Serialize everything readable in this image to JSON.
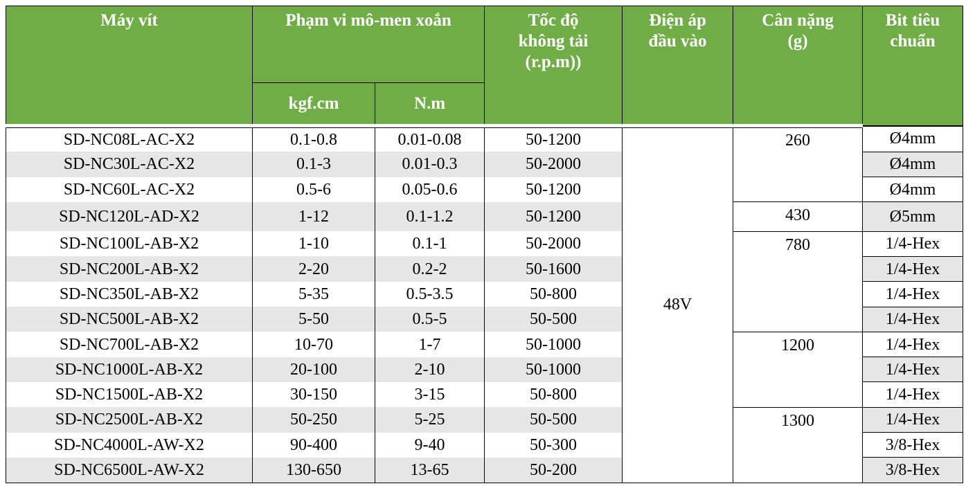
{
  "table": {
    "header": {
      "machine": "Máy vít",
      "torque_range": "Phạm vi mô-men xoắn",
      "kgf": "kgf.cm",
      "nm": "N.m",
      "speed": "Tốc độ\nkhông tải\n(r.p.m))",
      "voltage": "Điện áp\nđầu vào",
      "weight": "Cân nặng\n(g)",
      "bit": "Bit tiêu\nchuẩn"
    },
    "voltage": "48V",
    "rows": [
      [
        "SD-NC08L-AC-X2",
        "0.1-0.8",
        "0.01-0.08",
        "50-1200",
        "260",
        "Ø4mm"
      ],
      [
        "SD-NC30L-AC-X2",
        "0.1-3",
        "0.01-0.3",
        "50-2000",
        null,
        "Ø4mm"
      ],
      [
        "SD-NC60L-AC-X2",
        "0.5-6",
        "0.05-0.6",
        "50-1200",
        null,
        "Ø4mm"
      ],
      [
        "SD-NC120L-AD-X2",
        "1-12",
        "0.1-1.2",
        "50-1200",
        "430",
        "Ø5mm"
      ],
      [
        "SD-NC100L-AB-X2",
        "1-10",
        "0.1-1",
        "50-2000",
        "780",
        "1/4-Hex"
      ],
      [
        "SD-NC200L-AB-X2",
        "2-20",
        "0.2-2",
        "50-1600",
        null,
        "1/4-Hex"
      ],
      [
        "SD-NC350L-AB-X2",
        "5-35",
        "0.5-3.5",
        "50-800",
        null,
        "1/4-Hex"
      ],
      [
        "SD-NC500L-AB-X2",
        "5-50",
        "0.5-5",
        "50-500",
        null,
        "1/4-Hex"
      ],
      [
        "SD-NC700L-AB-X2",
        "10-70",
        "1-7",
        "50-1000",
        "1200",
        "1/4-Hex"
      ],
      [
        "SD-NC1000L-AB-X2",
        "20-100",
        "2-10",
        "50-1000",
        null,
        "1/4-Hex"
      ],
      [
        "SD-NC1500L-AB-X2",
        "30-150",
        "3-15",
        "50-800",
        null,
        "1/4-Hex"
      ],
      [
        "SD-NC2500L-AB-X2",
        "50-250",
        "5-25",
        "50-500",
        "1300",
        "1/4-Hex"
      ],
      [
        "SD-NC4000L-AW-X2",
        "90-400",
        "9-40",
        "50-300",
        null,
        "3/8-Hex"
      ],
      [
        "SD-NC6500L-AW-X2",
        "130-650",
        "13-65",
        "50-200",
        null,
        "3/8-Hex"
      ]
    ]
  }
}
